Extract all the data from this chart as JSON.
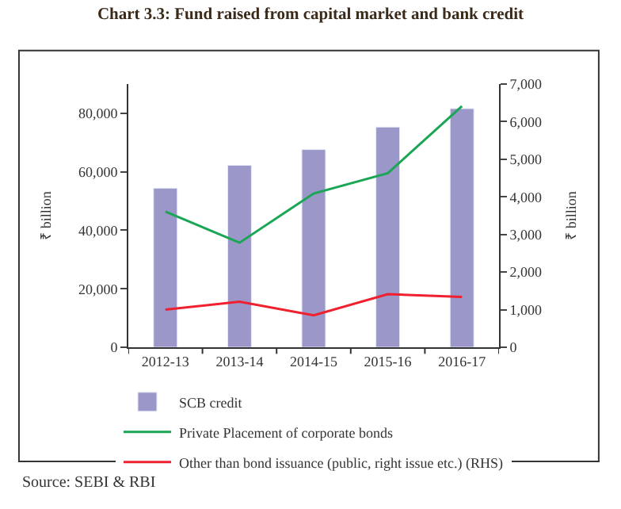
{
  "chart_data": {
    "type": "bar",
    "title": "Chart 3.3: Fund raised from capital market and bank credit",
    "ylabel": "₹ billion",
    "y2label": "₹ billion",
    "categories": [
      "2012-13",
      "2013-14",
      "2014-15",
      "2015-16",
      "2016-17"
    ],
    "series": [
      {
        "name": "SCB credit",
        "color": "#9b97c9",
        "values": [
          54400,
          62200,
          67600,
          75300,
          81600
        ]
      },
      {
        "name": "Private Placement of corporate bonds",
        "type": "line",
        "axis": "y2",
        "color": "#1aa655",
        "values": [
          3610,
          2780,
          4090,
          4630,
          6410
        ]
      },
      {
        "name": "Other than bond issuance (public, right issue etc.) (RHS)",
        "type": "line",
        "axis": "y2",
        "color": "#f0202e",
        "values": [
          1000,
          1210,
          850,
          1410,
          1340
        ]
      }
    ],
    "ylim": [
      0,
      90000
    ],
    "yticks": [
      0,
      {
        "value": 20000,
        "label": "20,000"
      },
      {
        "value": 40000,
        "label": "40,000"
      },
      {
        "value": 60000,
        "label": "60,000"
      },
      {
        "value": 80000,
        "label": "80,000"
      }
    ],
    "y2lim": [
      0,
      7000
    ],
    "y2ticks": [
      0,
      {
        "value": 1000,
        "label": "1,000"
      },
      {
        "value": 2000,
        "label": "2,000"
      },
      {
        "value": 3000,
        "label": "3,000"
      },
      {
        "value": 4000,
        "label": "4,000"
      },
      {
        "value": 5000,
        "label": "5,000"
      },
      {
        "value": 6000,
        "label": "6,000"
      },
      {
        "value": 7000,
        "label": "7,000"
      }
    ],
    "grid": false,
    "legend": "bottom",
    "marker": "none",
    "line_style": "solid",
    "annotations": [
      "Source: SEBI & RBI"
    ]
  }
}
